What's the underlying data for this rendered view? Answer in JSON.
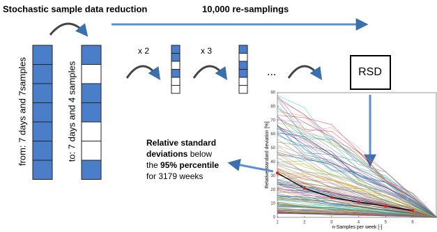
{
  "title": "Stochastic sample data reduction",
  "resampling_label": "10,000 re-samplings",
  "from_label": "from: 7 days and 7samples",
  "to_label": "to: 7 days and 4 samples",
  "step_labels": [
    "x 2",
    "x 3"
  ],
  "ellipsis": "...",
  "rsd_box": "RSD",
  "note": [
    [
      {
        "text": "Relative standard",
        "bold": true
      }
    ],
    [
      {
        "text": "deviations",
        "bold": true
      },
      {
        "text": " below",
        "bold": false
      }
    ],
    [
      {
        "text": "the ",
        "bold": false
      },
      {
        "text": "95% percentile",
        "bold": true
      }
    ],
    [
      {
        "text": "for 3179 weeks",
        "bold": false
      }
    ]
  ],
  "chart_data": {
    "type": "line",
    "xlabel": "n-Samples per week [-]",
    "ylabel": "Relative standard deviation [%]",
    "x": [
      1,
      2,
      3,
      4,
      5,
      6
    ],
    "series": [
      {
        "name": "95% percentile",
        "color": "#000000",
        "marker_color": "#d62728",
        "values": [
          32,
          21,
          14.5,
          11,
          8,
          5
        ]
      }
    ],
    "xlim": [
      1,
      6.9
    ],
    "xticks": [
      1,
      2,
      3,
      4,
      5,
      6
    ],
    "ylim": [
      0,
      90
    ],
    "yticks": [
      0,
      10,
      20,
      30,
      40,
      50,
      60,
      70,
      80,
      90
    ]
  }
}
